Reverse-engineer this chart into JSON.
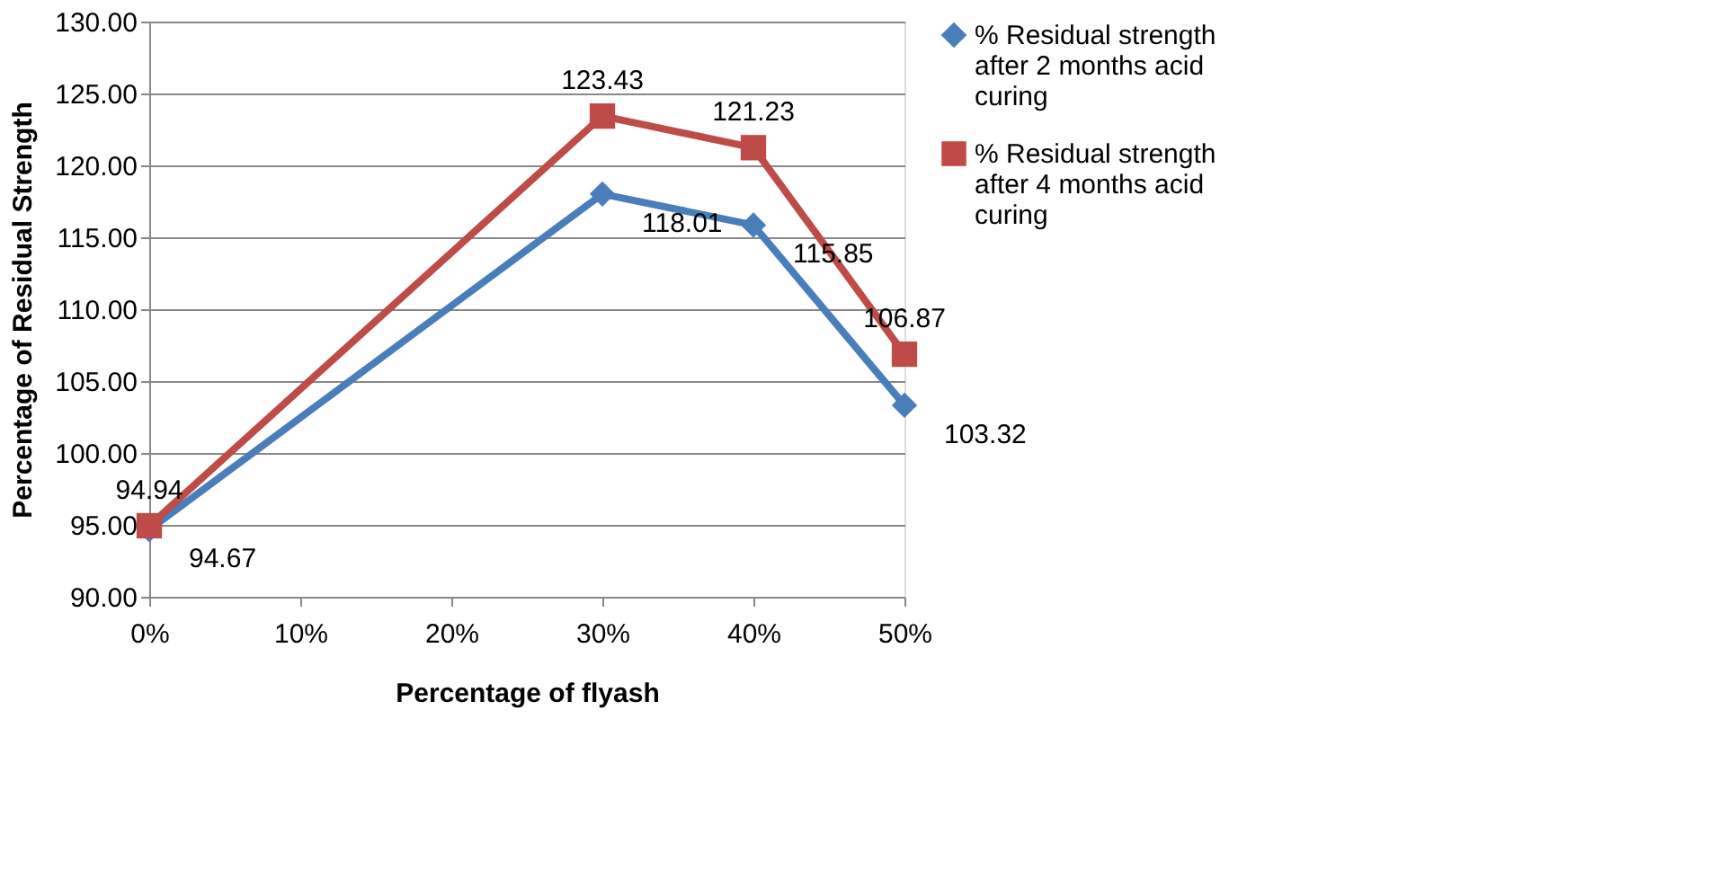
{
  "chart_data": {
    "type": "line",
    "xlabel": "Percentage of flyash",
    "ylabel": "Percentage of Residual Strength",
    "x": [
      0,
      30,
      40,
      50
    ],
    "xlim": [
      0,
      50
    ],
    "xticks": [
      {
        "value": 0,
        "label": "0%"
      },
      {
        "value": 10,
        "label": "10%"
      },
      {
        "value": 20,
        "label": "20%"
      },
      {
        "value": 30,
        "label": "30%"
      },
      {
        "value": 40,
        "label": "40%"
      },
      {
        "value": 50,
        "label": "50%"
      }
    ],
    "ylim": [
      90,
      130
    ],
    "yticks": [
      {
        "value": 90,
        "label": "90.00"
      },
      {
        "value": 95,
        "label": "95.00"
      },
      {
        "value": 100,
        "label": "100.00"
      },
      {
        "value": 105,
        "label": "105.00"
      },
      {
        "value": 110,
        "label": "110.00"
      },
      {
        "value": 115,
        "label": "115.00"
      },
      {
        "value": 120,
        "label": "120.00"
      },
      {
        "value": 125,
        "label": "125.00"
      },
      {
        "value": 130,
        "label": "130.00"
      }
    ],
    "series": [
      {
        "name": "% Residual strength after 2 months acid curing",
        "color": "#4a7ebb",
        "marker": "diamond",
        "values": [
          94.67,
          118.01,
          115.85,
          103.32
        ]
      },
      {
        "name": "% Residual strength after 4 months acid curing",
        "color": "#be4b48",
        "marker": "square",
        "values": [
          94.94,
          123.43,
          121.23,
          106.87
        ]
      }
    ],
    "data_labels": true,
    "grid": "y",
    "legend": "right",
    "line_style": "solid"
  }
}
